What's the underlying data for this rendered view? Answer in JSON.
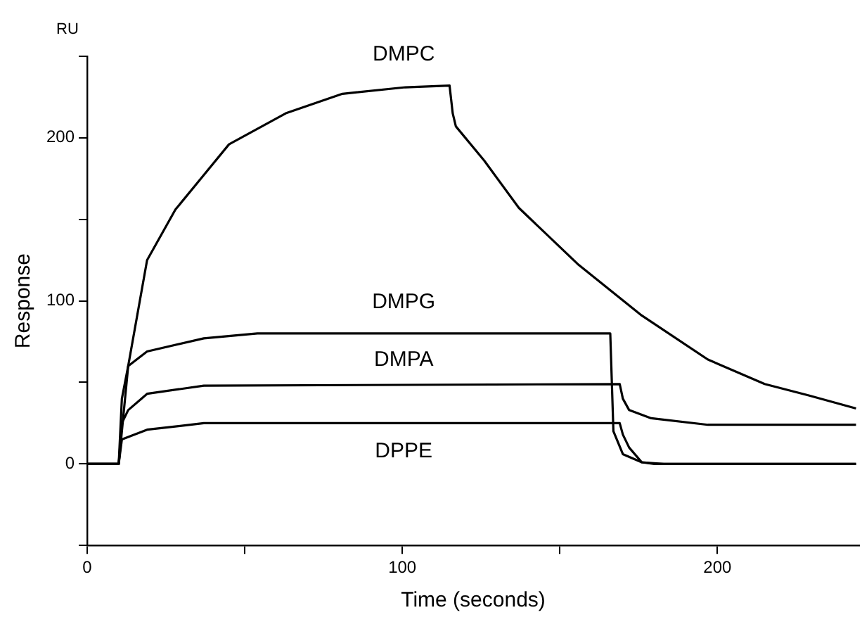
{
  "chart_data": {
    "type": "line",
    "xlabel": "Time (seconds)",
    "ylabel": "Response",
    "annotations": [
      "RU"
    ],
    "xlim": [
      0,
      245
    ],
    "xticks": [
      0,
      {
        "value": 50,
        "label": null
      },
      100,
      {
        "value": 150,
        "label": null
      },
      200
    ],
    "ylim": [
      -50,
      250
    ],
    "yticks": [
      {
        "value": -50,
        "label": null
      },
      0,
      {
        "value": 50,
        "label": null
      },
      100,
      {
        "value": 150,
        "label": null
      },
      200,
      {
        "value": 250,
        "label": null
      }
    ],
    "grid": false,
    "legend": false,
    "marker": "none",
    "line_style": "solid",
    "series": [
      {
        "name": "DMPC",
        "color": "#000000",
        "x": [
          0,
          10,
          13,
          19,
          28,
          45,
          63,
          81,
          101,
          115,
          116,
          117,
          126,
          137,
          156,
          176,
          197,
          215,
          229,
          244
        ],
        "values": [
          0,
          0,
          60,
          125,
          156,
          196,
          215,
          227,
          231,
          232,
          215,
          207,
          186,
          157,
          122,
          91,
          64,
          49,
          42,
          34
        ]
      },
      {
        "name": "DMPG",
        "color": "#000000",
        "x": [
          0,
          10,
          11,
          13,
          19,
          37,
          54,
          166,
          167,
          170,
          176,
          180,
          244
        ],
        "values": [
          0,
          0,
          40,
          60,
          69,
          77,
          80,
          80,
          20,
          6,
          1,
          0,
          0
        ]
      },
      {
        "name": "DMPA",
        "color": "#000000",
        "x": [
          0,
          10,
          11,
          13,
          19,
          37,
          169,
          170,
          172,
          179,
          197,
          244
        ],
        "values": [
          0,
          0,
          25,
          33,
          43,
          48,
          49,
          40,
          33,
          28,
          24,
          24
        ]
      },
      {
        "name": "DPPE",
        "color": "#000000",
        "x": [
          0,
          10,
          11,
          19,
          37,
          169,
          170,
          172,
          176,
          183,
          244
        ],
        "values": [
          0,
          0,
          15,
          21,
          25,
          25,
          18,
          10,
          1,
          0,
          0
        ]
      }
    ]
  }
}
